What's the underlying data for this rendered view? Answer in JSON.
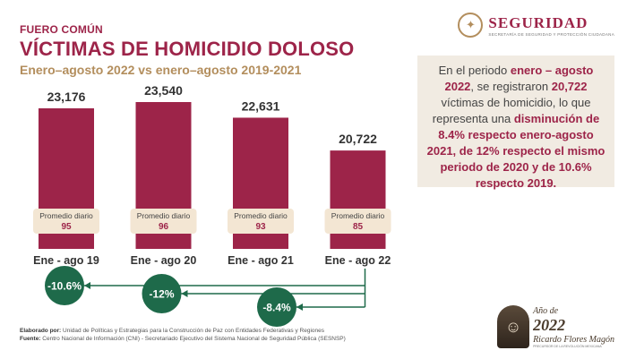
{
  "header": {
    "eyebrow": "FUERO COMÚN",
    "title": "VÍCTIMAS DE HOMICIDIO DOLOSO",
    "subtitle": "Enero–agosto 2022 vs enero–agosto 2019-2021"
  },
  "logo": {
    "name": "SEGURIDAD",
    "sub": "Secretaría de Seguridad y Protección Ciudadana",
    "seal_icon": "eagle-seal-icon"
  },
  "info": {
    "p1": "En el periodo ",
    "b1": "enero – agosto 2022",
    "p2": ", se registraron ",
    "b2": "20,722",
    "p3": " víctimas de homicidio, lo que representa una ",
    "b3": "disminución de 8.4% respecto enero-agosto 2021, de 12% respecto el mismo periodo de 2020 y de 10.6% respecto 2019."
  },
  "chart_data": {
    "type": "bar",
    "categories": [
      "Ene -  ago 19",
      "Ene - ago 20",
      "Ene - ago 21",
      "Ene - ago 22"
    ],
    "values": [
      23176,
      23540,
      22631,
      20722
    ],
    "value_labels": [
      "23,176",
      "23,540",
      "22,631",
      "20,722"
    ],
    "daily_label": "Promedio diario",
    "daily_values": [
      "95",
      "96",
      "93",
      "85"
    ],
    "comparisons": [
      {
        "from": "Ene - ago 22",
        "to": "Ene -  ago 19",
        "label": "-10.6%"
      },
      {
        "from": "Ene - ago 22",
        "to": "Ene - ago 20",
        "label": "-12%"
      },
      {
        "from": "Ene - ago 22",
        "to": "Ene - ago 21",
        "label": "-8.4%"
      }
    ],
    "colors": {
      "bar": "#9d2449",
      "badge": "#1e6a4a",
      "accent": "#b38e5d",
      "daily_box": "#f3e6d3"
    }
  },
  "footer": {
    "elaborado_label": "Elaborado por:",
    "elaborado": " Unidad de Políticas y Estrategias para la Construcción de Paz con Entidades Federativas y Regiones",
    "fuente_label": "Fuente:",
    "fuente": " Centro Nacional de Información (CNI) - Secretariado Ejecutivo del Sistema Nacional de Seguridad Pública (SESNSP)"
  },
  "brand": {
    "year": "2022",
    "anio": "Año de",
    "name": "Ricardo Flores Magón",
    "sub": "Precursor de la Revolución Mexicana",
    "portrait_icon": "portrait-icon"
  }
}
